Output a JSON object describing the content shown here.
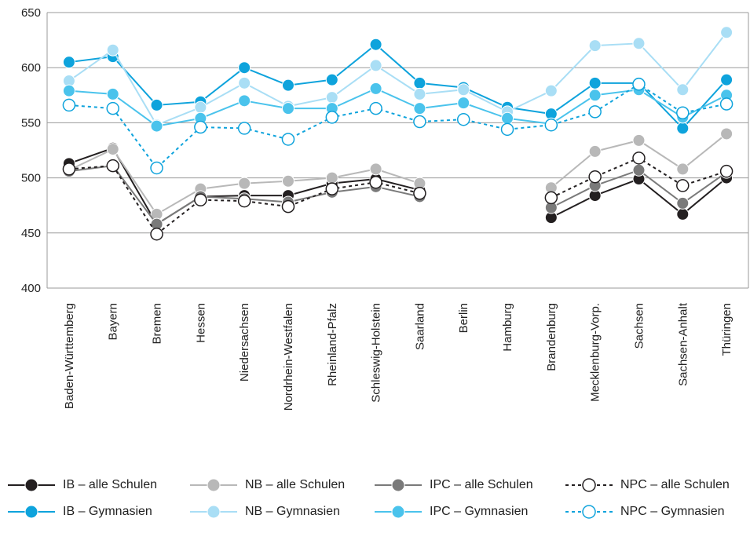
{
  "chart_data": {
    "type": "line",
    "title": "",
    "xlabel": "",
    "ylabel": "",
    "ylim": [
      400,
      650
    ],
    "yticks": [
      400,
      450,
      500,
      550,
      600,
      650
    ],
    "grid": true,
    "legend_position": "bottom",
    "categories": [
      "Baden-Württemberg",
      "Bayern",
      "Bremen",
      "Hessen",
      "Niedersachsen",
      "Nordrhein-Westfalen",
      "Rheinland-Pfalz",
      "Schleswig-Holstein",
      "Saarland",
      "Berlin",
      "Hamburg",
      "Brandenburg",
      "Mecklenburg-Vorp.",
      "Sachsen",
      "Sachsen-Anhalt",
      "Thüringen"
    ],
    "series": [
      {
        "name": "IB – alle Schulen",
        "color": "#231f20",
        "dashed": false,
        "filled": true,
        "values": [
          513,
          527,
          458,
          483,
          484,
          484,
          495,
          499,
          489,
          null,
          null,
          464,
          484,
          499,
          467,
          500
        ]
      },
      {
        "name": "NB – alle Schulen",
        "color": "#b8b8b8",
        "dashed": false,
        "filled": true,
        "values": [
          507,
          526,
          467,
          490,
          495,
          497,
          500,
          508,
          495,
          null,
          null,
          491,
          524,
          534,
          508,
          540
        ]
      },
      {
        "name": "IPC – alle Schulen",
        "color": "#7a7a7a",
        "dashed": false,
        "filled": true,
        "values": [
          506,
          511,
          458,
          483,
          481,
          478,
          487,
          492,
          483,
          null,
          null,
          473,
          493,
          507,
          477,
          505
        ]
      },
      {
        "name": "NPC – alle Schulen",
        "color": "#231f20",
        "dashed": true,
        "filled": false,
        "values": [
          508,
          511,
          449,
          480,
          479,
          474,
          490,
          496,
          486,
          null,
          null,
          482,
          501,
          518,
          493,
          506
        ]
      },
      {
        "name": "IB – Gymnasien",
        "color": "#0ea3dc",
        "dashed": false,
        "filled": true,
        "values": [
          605,
          610,
          566,
          569,
          600,
          584,
          589,
          621,
          586,
          582,
          564,
          558,
          586,
          586,
          545,
          589
        ]
      },
      {
        "name": "NB – Gymnasien",
        "color": "#a9def5",
        "dashed": false,
        "filled": true,
        "values": [
          588,
          616,
          548,
          564,
          586,
          565,
          573,
          602,
          576,
          580,
          560,
          579,
          620,
          622,
          580,
          632
        ]
      },
      {
        "name": "IPC – Gymnasien",
        "color": "#4ac3ec",
        "dashed": false,
        "filled": true,
        "values": [
          579,
          576,
          547,
          554,
          570,
          563,
          563,
          581,
          563,
          568,
          554,
          549,
          575,
          580,
          555,
          575
        ]
      },
      {
        "name": "NPC – Gymnasien",
        "color": "#0ea3dc",
        "dashed": true,
        "filled": false,
        "values": [
          566,
          563,
          509,
          546,
          545,
          535,
          555,
          563,
          551,
          553,
          544,
          548,
          560,
          585,
          559,
          567
        ]
      }
    ]
  }
}
